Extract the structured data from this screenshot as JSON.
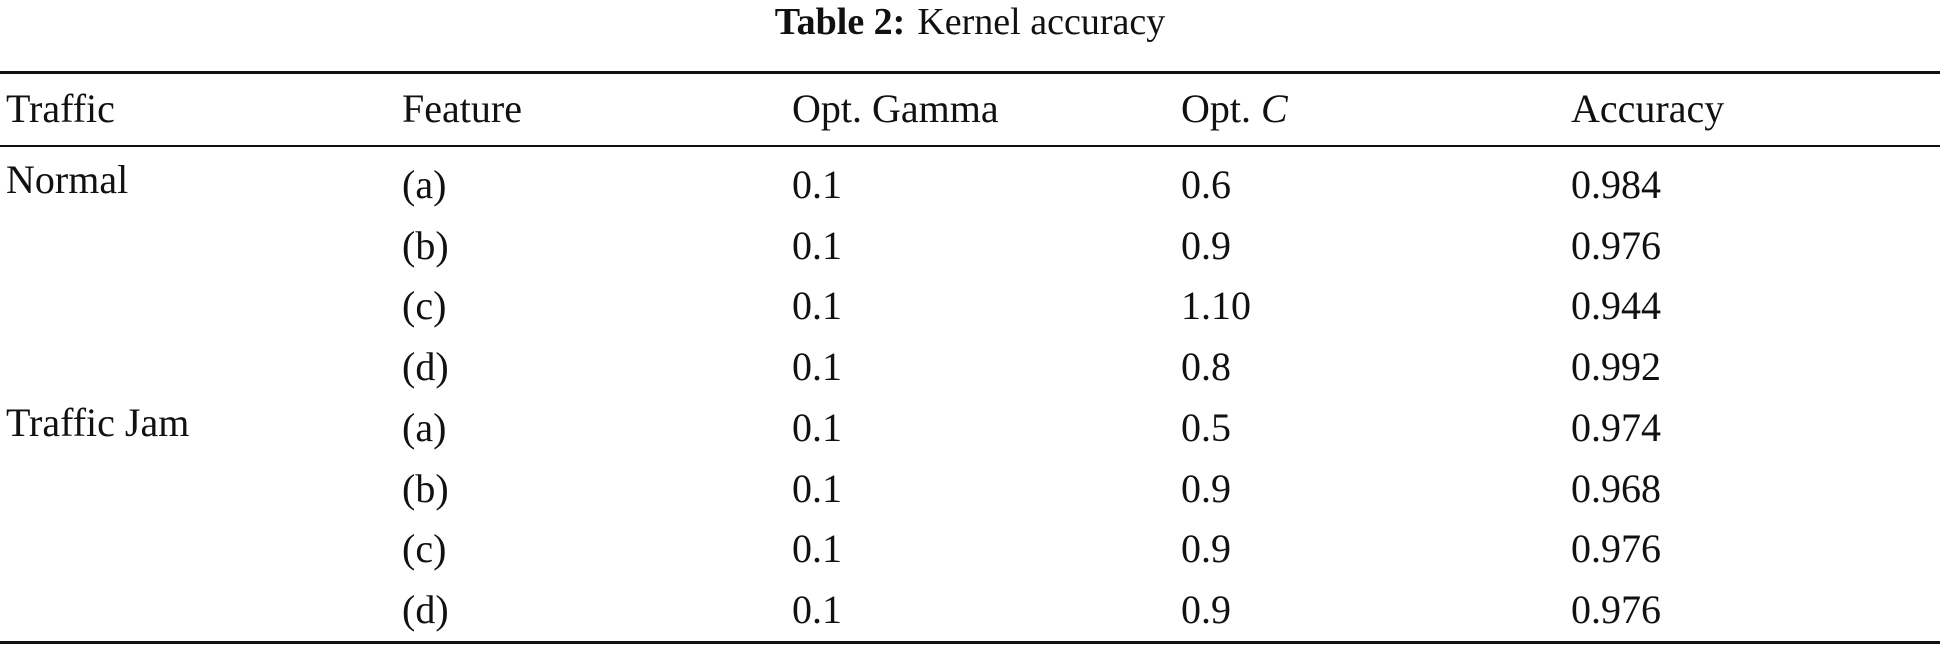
{
  "caption": {
    "label": "Table 2:",
    "title": "Kernel accuracy"
  },
  "table": {
    "header": [
      "Traffic",
      "Feature",
      "Opt. Gamma",
      [
        "Opt.",
        "C"
      ],
      "Accuracy"
    ],
    "groups": [
      {
        "traffic": "Normal",
        "rows": [
          [
            "(a)",
            "0.1",
            "0.6",
            "0.984"
          ],
          [
            "(b)",
            "0.1",
            "0.9",
            "0.976"
          ],
          [
            "(c)",
            "0.1",
            "1.10",
            "0.944"
          ],
          [
            "(d)",
            "0.1",
            "0.8",
            "0.992"
          ]
        ]
      },
      {
        "traffic": "Traffic Jam",
        "rows": [
          [
            "(a)",
            "0.1",
            "0.5",
            "0.974"
          ],
          [
            "(b)",
            "0.1",
            "0.9",
            "0.968"
          ],
          [
            "(c)",
            "0.1",
            "0.9",
            "0.976"
          ],
          [
            "(d)",
            "0.1",
            "0.9",
            "0.976"
          ]
        ]
      }
    ]
  }
}
